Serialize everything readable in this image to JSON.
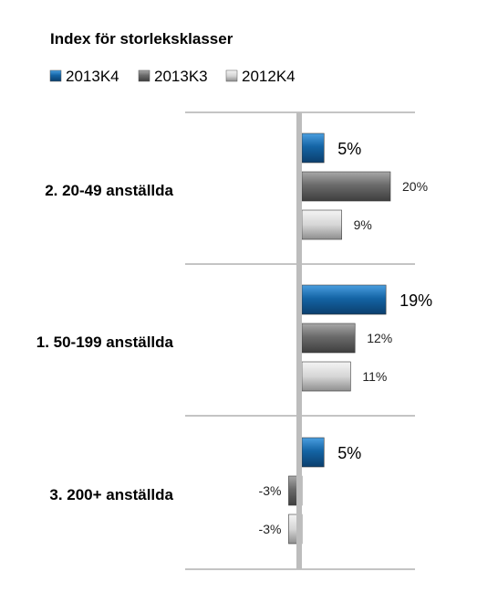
{
  "chart_data": {
    "type": "bar",
    "orientation": "horizontal",
    "title": "Index för storleksklasser",
    "categories": [
      "2. 20-49 anställda",
      "1. 50-199 anställda",
      "3. 200+ anställda"
    ],
    "series": [
      {
        "name": "2013K4",
        "values": [
          5,
          19,
          5
        ],
        "labels": [
          "5%",
          "19%",
          "5%"
        ],
        "color": "#1464a5"
      },
      {
        "name": "2013K3",
        "values": [
          20,
          12,
          -3
        ],
        "labels": [
          "20%",
          "12%",
          "-3%"
        ],
        "color": "#6b6b6b"
      },
      {
        "name": "2012K4",
        "values": [
          9,
          11,
          -3
        ],
        "labels": [
          "9%",
          "11%",
          "-3%"
        ],
        "color": "#c8c8c8"
      }
    ],
    "legend_position": "top-left",
    "grid": false
  }
}
